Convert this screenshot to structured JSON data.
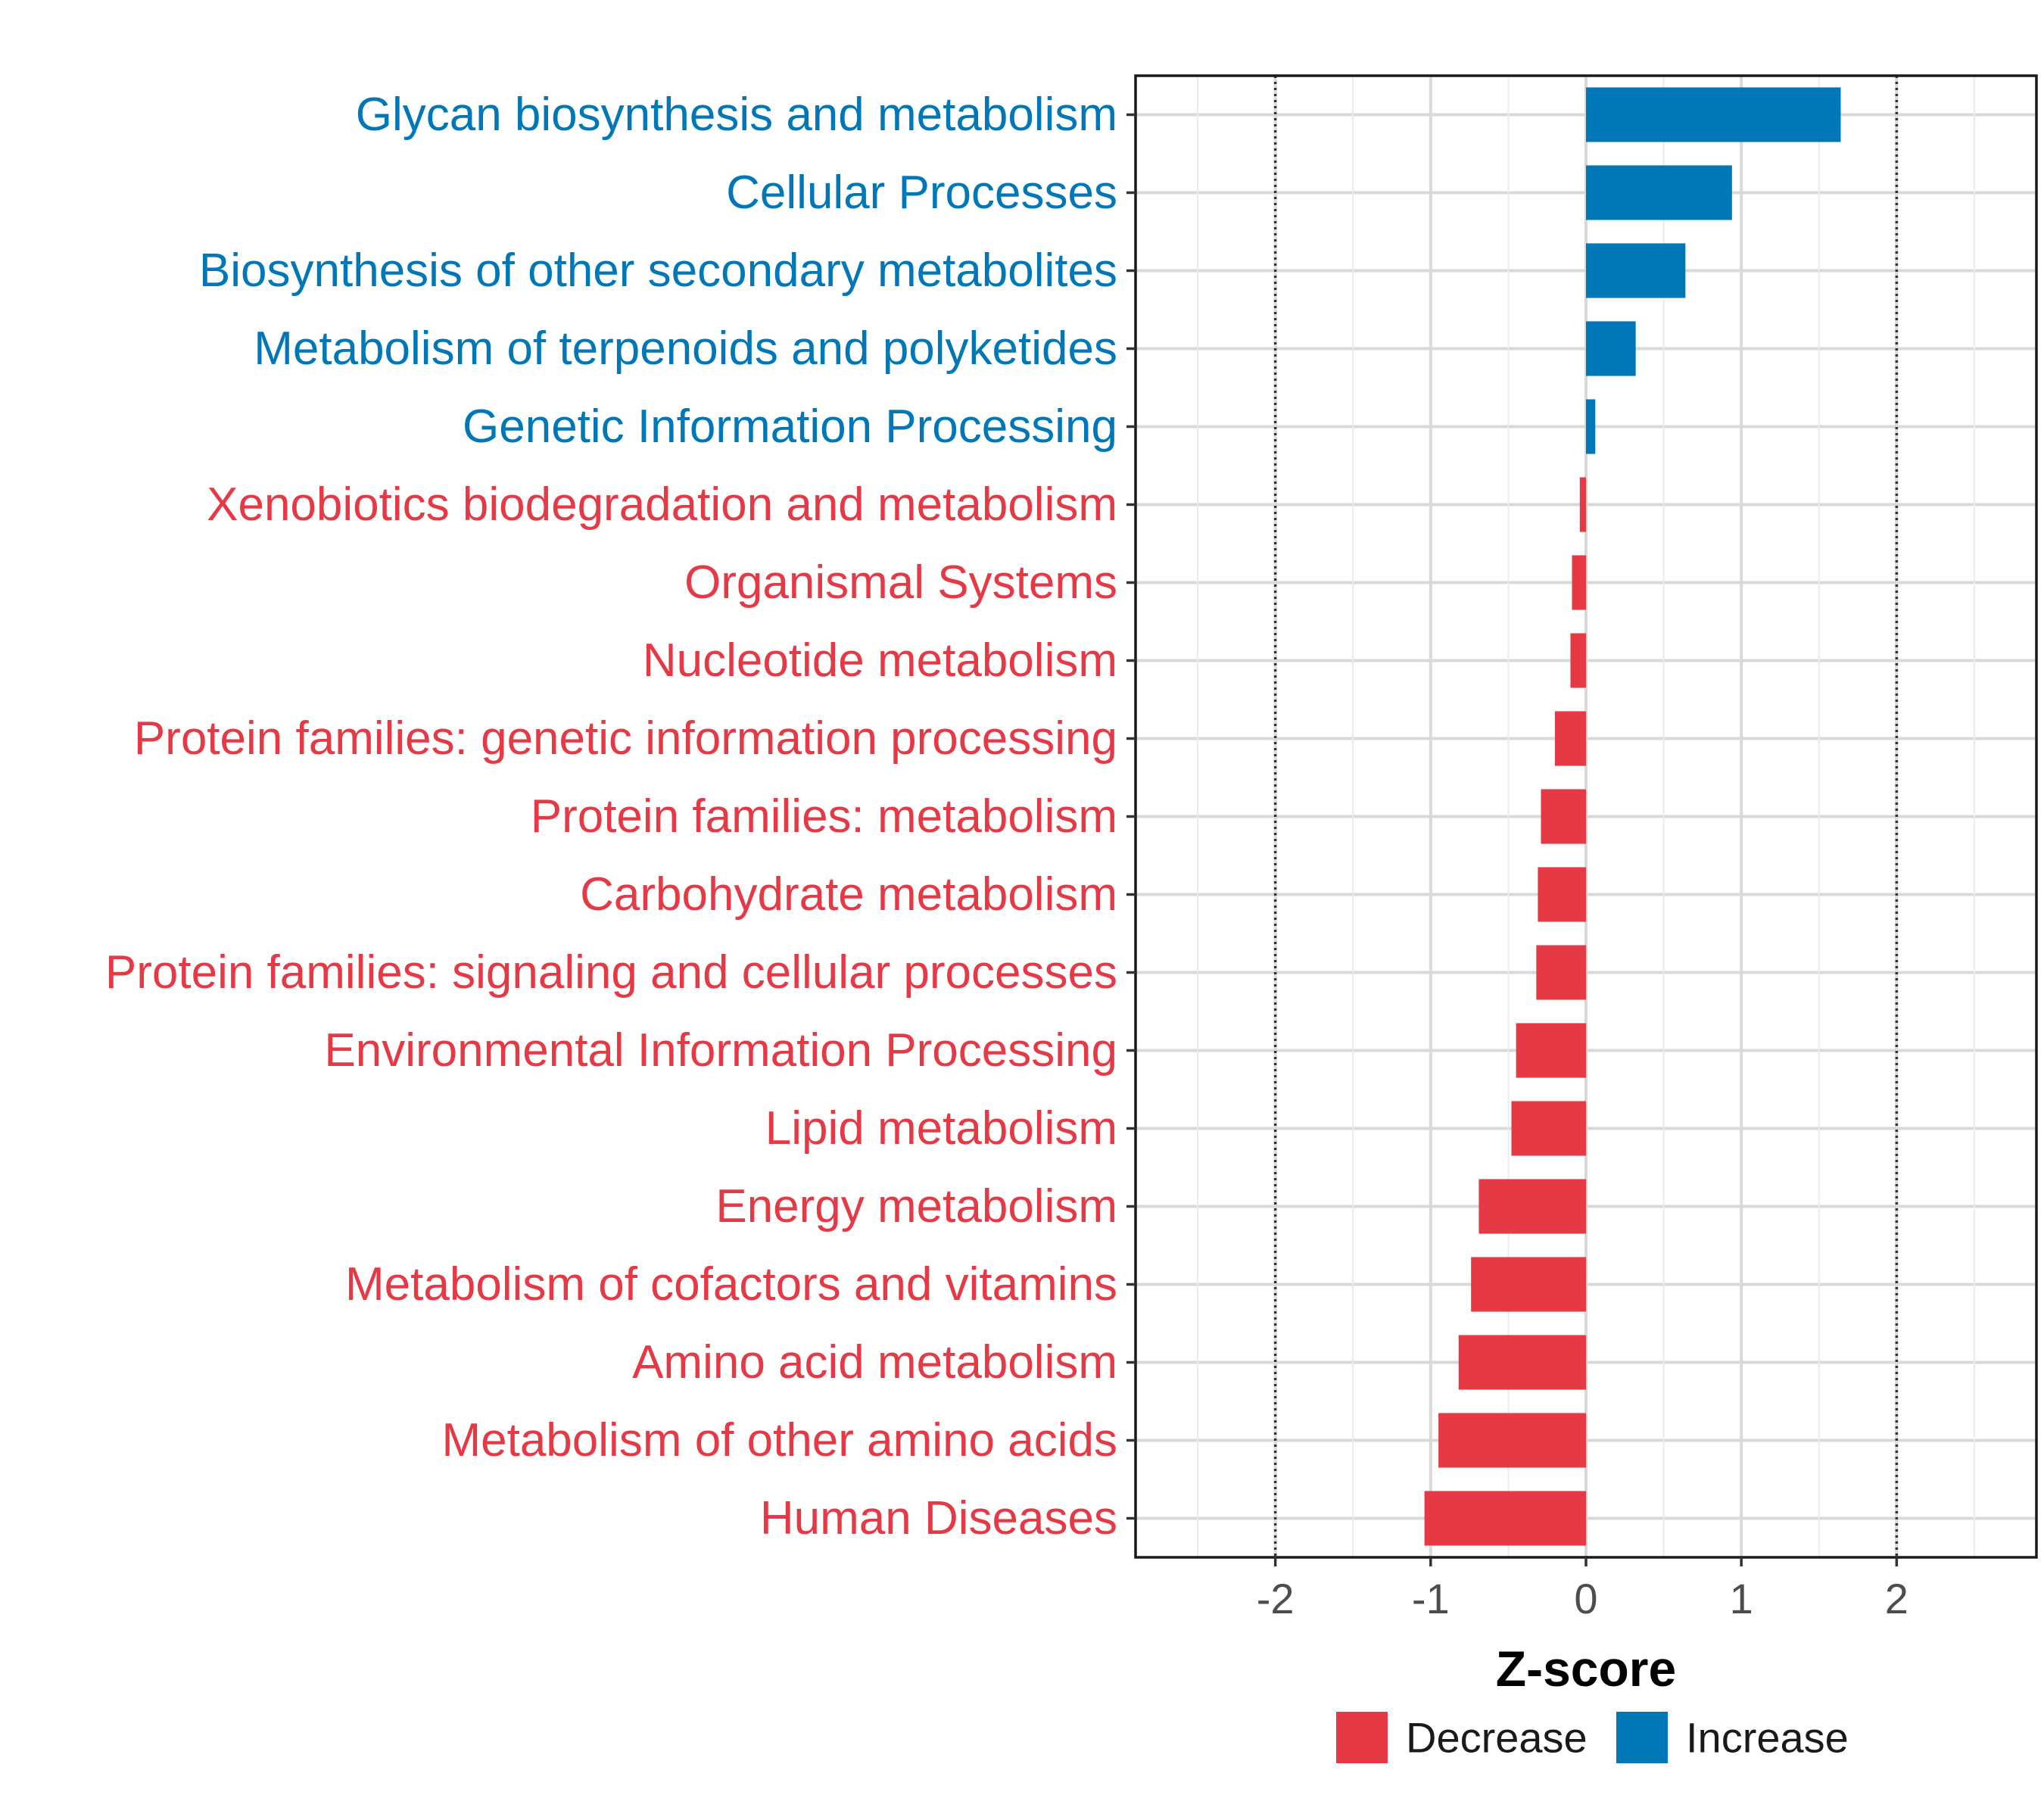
{
  "chart_data": {
    "type": "bar",
    "orientation": "horizontal",
    "categories": [
      "Glycan biosynthesis and metabolism",
      "Cellular Processes",
      "Biosynthesis of other secondary metabolites",
      "Metabolism of terpenoids and polyketides",
      "Genetic Information Processing",
      "Xenobiotics biodegradation and metabolism",
      "Organismal Systems",
      "Nucleotide metabolism",
      "Protein families: genetic information processing",
      "Protein families: metabolism",
      "Carbohydrate metabolism",
      "Protein families: signaling and cellular processes",
      "Environmental Information Processing",
      "Lipid metabolism",
      "Energy metabolism",
      "Metabolism of cofactors and vitamins",
      "Amino acid metabolism",
      "Metabolism of other amino acids",
      "Human Diseases"
    ],
    "values": [
      1.64,
      0.94,
      0.64,
      0.32,
      0.06,
      -0.04,
      -0.09,
      -0.1,
      -0.2,
      -0.29,
      -0.31,
      -0.32,
      -0.45,
      -0.48,
      -0.69,
      -0.74,
      -0.82,
      -0.95,
      -1.04
    ],
    "groups": [
      "Increase",
      "Increase",
      "Increase",
      "Increase",
      "Increase",
      "Decrease",
      "Decrease",
      "Decrease",
      "Decrease",
      "Decrease",
      "Decrease",
      "Decrease",
      "Decrease",
      "Decrease",
      "Decrease",
      "Decrease",
      "Decrease",
      "Decrease",
      "Decrease"
    ],
    "xlabel": "Z-score",
    "ylabel": "",
    "xlim": [
      -2.9,
      2.9
    ],
    "xticks": [
      -2,
      -1,
      0,
      1,
      2
    ],
    "xtick_labels": [
      "-2",
      "-1",
      "0",
      "1",
      "2"
    ],
    "reference_lines": [
      -2,
      2
    ],
    "grid": true,
    "colors": {
      "Decrease": "#E63946",
      "Increase": "#0077B6"
    },
    "legend": {
      "position": "bottom",
      "entries": [
        {
          "label": "Decrease",
          "color": "#E63946"
        },
        {
          "label": "Increase",
          "color": "#0077B6"
        }
      ]
    }
  }
}
